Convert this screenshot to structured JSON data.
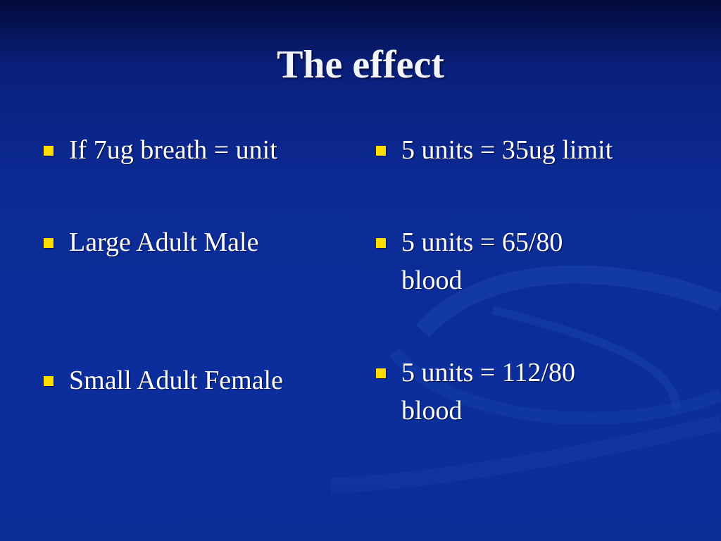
{
  "slide": {
    "title": "The effect",
    "left_column": [
      {
        "text": "If 7ug breath = unit"
      },
      {
        "text": "Large Adult Male"
      },
      {
        "text": "Small Adult Female"
      }
    ],
    "right_column": [
      {
        "text": "5 units = 35ug limit"
      },
      {
        "text": "5 units = 65/80 blood"
      },
      {
        "text": "5 units = 112/80 blood"
      }
    ],
    "bullet_icon": "square-bullet",
    "colors": {
      "background": "#0b2e9c",
      "bullet": "#ffdd00",
      "text": "#ffffff"
    }
  }
}
